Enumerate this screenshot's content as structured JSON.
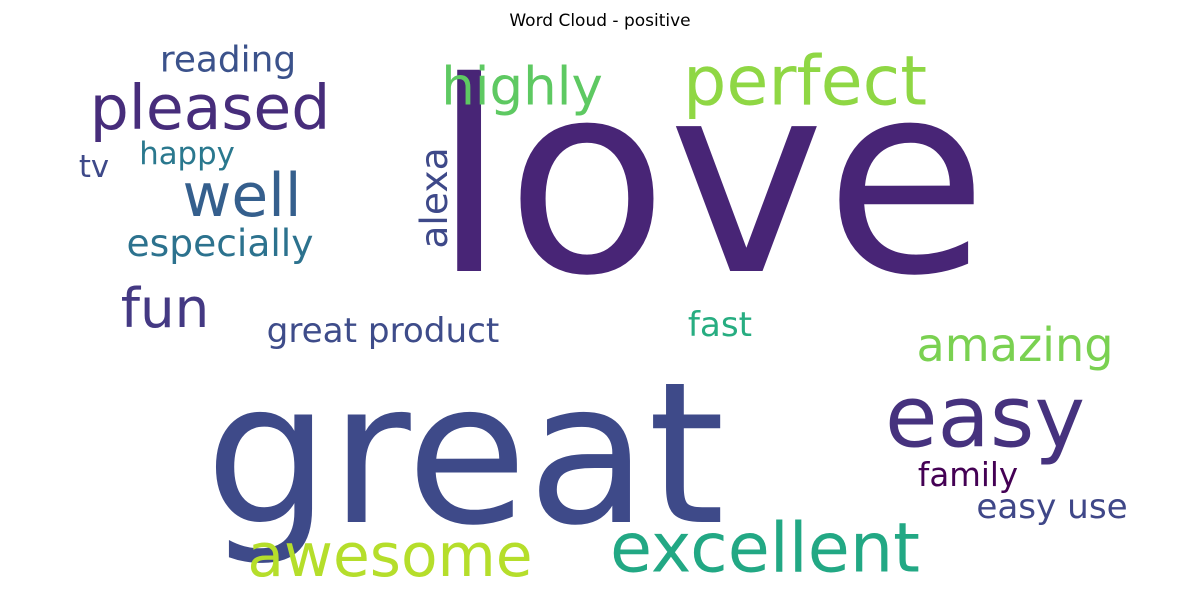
{
  "chart_data": {
    "type": "wordcloud",
    "title": "Word Cloud - positive",
    "words": [
      {
        "text": "love",
        "color": "#482576"
      },
      {
        "text": "great",
        "color": "#3e4a89"
      },
      {
        "text": "perfect",
        "color": "#8fd744"
      },
      {
        "text": "pleased",
        "color": "#472d7b"
      },
      {
        "text": "highly",
        "color": "#5ec962"
      },
      {
        "text": "reading",
        "color": "#3b528b"
      },
      {
        "text": "well",
        "color": "#355f8d"
      },
      {
        "text": "happy",
        "color": "#2a788e"
      },
      {
        "text": "tv",
        "color": "#3e4989"
      },
      {
        "text": "alexa",
        "color": "#3e4989"
      },
      {
        "text": "especially",
        "color": "#2c728e"
      },
      {
        "text": "fun",
        "color": "#443983"
      },
      {
        "text": "great product",
        "color": "#3e4c8a"
      },
      {
        "text": "fast",
        "color": "#27ad81"
      },
      {
        "text": "amazing",
        "color": "#7ad151"
      },
      {
        "text": "easy",
        "color": "#46327e"
      },
      {
        "text": "family",
        "color": "#440154"
      },
      {
        "text": "easy use",
        "color": "#3f4788"
      },
      {
        "text": "awesome",
        "color": "#b5de2b"
      },
      {
        "text": "excellent",
        "color": "#22a884"
      }
    ]
  }
}
